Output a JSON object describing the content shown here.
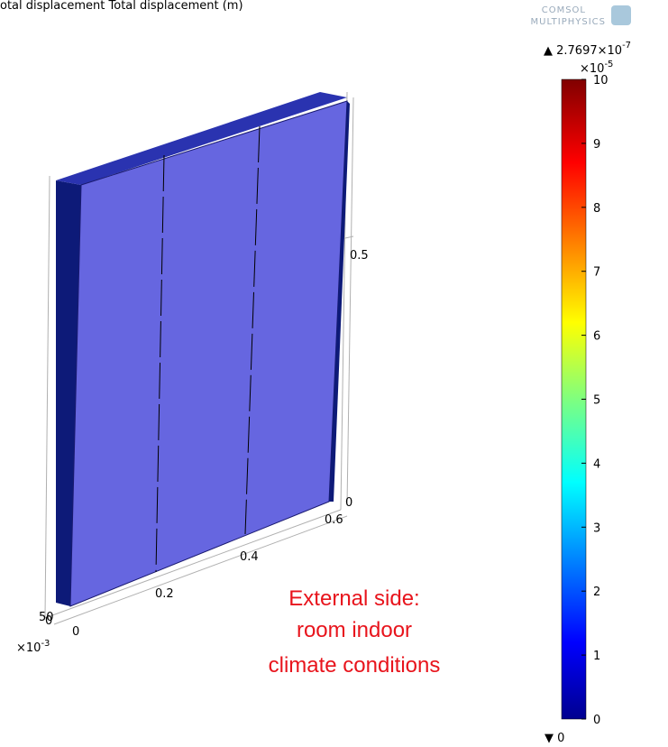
{
  "header": {
    "title": "otal displacement Total displacement (m)"
  },
  "logo": {
    "line1": "COMSOL",
    "line2": "MULTIPHYSICS"
  },
  "colorbar": {
    "max_label": {
      "text": "▲ 2.7697×10",
      "exponent": "-7"
    },
    "scale": {
      "text": "×10",
      "exponent": "-5"
    },
    "ticks": [
      "10",
      "9",
      "8",
      "7",
      "6",
      "5",
      "4",
      "3",
      "2",
      "1",
      "0"
    ],
    "min_label": "▼ 0"
  },
  "axes": {
    "z_tick_top": "0.5",
    "z_tick_bottom": "0",
    "x_ticks": [
      "0.6",
      "0.4",
      "0.2",
      "0"
    ],
    "y_ticks_overlap": [
      "50",
      "0"
    ],
    "y_scale": {
      "text": "×10",
      "exponent": "-3"
    }
  },
  "annotation": {
    "lines": [
      "External side:",
      "room indoor",
      "climate conditions"
    ]
  }
}
